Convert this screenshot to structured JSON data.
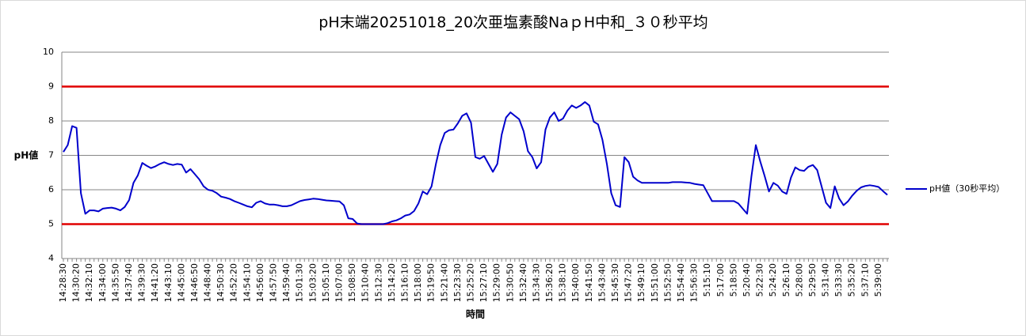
{
  "chart_data": {
    "type": "line",
    "title": "pH末端20251018_20次亜塩素酸NaｐH中和_３０秒平均",
    "y_label": "pH値",
    "x_label": "時間",
    "ylim": [
      4,
      10
    ],
    "yticks": [
      4,
      5,
      6,
      7,
      8,
      9,
      10
    ],
    "grid": true,
    "legend": "right",
    "reference_lines": [
      {
        "value": 5,
        "color": "#e00000"
      },
      {
        "value": 9,
        "color": "#e00000"
      }
    ],
    "categories": [
      "14:28:30",
      null,
      null,
      "14:30:20",
      null,
      null,
      "14:32:10",
      null,
      null,
      "14:34:00",
      null,
      null,
      "14:35:50",
      null,
      null,
      "14:37:40",
      null,
      null,
      "14:39:30",
      null,
      null,
      "14:41:20",
      null,
      null,
      "14:43:10",
      null,
      null,
      "14:45:00",
      null,
      null,
      "14:46:50",
      null,
      null,
      "14:48:40",
      null,
      null,
      "14:50:30",
      null,
      null,
      "14:52:20",
      null,
      null,
      "14:54:10",
      null,
      null,
      "14:56:00",
      null,
      null,
      "14:57:50",
      null,
      null,
      "14:59:40",
      null,
      null,
      "15:01:30",
      null,
      null,
      "15:03:20",
      null,
      null,
      "15:05:10",
      null,
      null,
      "15:07:00",
      null,
      null,
      "15:08:50",
      null,
      null,
      "15:10:40",
      null,
      null,
      "15:12:30",
      null,
      null,
      "15:14:20",
      null,
      null,
      "15:16:10",
      null,
      null,
      "15:18:00",
      null,
      null,
      "15:19:50",
      null,
      null,
      "15:21:40",
      null,
      null,
      "15:23:30",
      null,
      null,
      "15:25:20",
      null,
      null,
      "15:27:10",
      null,
      null,
      "15:29:00",
      null,
      null,
      "15:30:50",
      null,
      null,
      "15:32:40",
      null,
      null,
      "15:34:30",
      null,
      null,
      "15:36:20",
      null,
      null,
      "15:38:10",
      null,
      null,
      "15:40:00",
      null,
      null,
      "15:41:50",
      null,
      null,
      "15:43:40",
      null,
      null,
      "15:45:30",
      null,
      null,
      "15:47:20",
      null,
      null,
      "15:49:10",
      null,
      null,
      "15:51:00",
      null,
      null,
      "15:52:50",
      null,
      null,
      "15:54:40",
      null,
      null,
      "15:56:30",
      null,
      null,
      "5:15:10",
      null,
      null,
      "5:17:00",
      null,
      null,
      "5:18:50",
      null,
      null,
      "5:20:40",
      null,
      null,
      "5:22:30",
      null,
      null,
      "5:24:20",
      null,
      null,
      "5:26:10",
      null,
      null,
      "5:28:00",
      null,
      null,
      "5:29:50",
      null,
      null,
      "5:31:40",
      null,
      null,
      "5:33:30",
      null,
      null,
      "5:35:20",
      null,
      null,
      "5:37:10",
      null,
      null,
      "5:39:00",
      null,
      null
    ],
    "series": [
      {
        "name": "pH値（30秒平均）",
        "color": "#0000cc",
        "values": [
          7.1,
          7.3,
          7.85,
          7.8,
          5.9,
          5.3,
          5.4,
          5.4,
          5.37,
          5.45,
          5.47,
          5.48,
          5.45,
          5.4,
          5.5,
          5.7,
          6.2,
          6.42,
          6.78,
          6.7,
          6.63,
          6.68,
          6.75,
          6.8,
          6.75,
          6.72,
          6.75,
          6.73,
          6.5,
          6.6,
          6.45,
          6.3,
          6.1,
          6.0,
          5.97,
          5.9,
          5.8,
          5.77,
          5.73,
          5.67,
          5.62,
          5.57,
          5.52,
          5.49,
          5.62,
          5.67,
          5.6,
          5.57,
          5.57,
          5.55,
          5.52,
          5.52,
          5.55,
          5.61,
          5.67,
          5.7,
          5.72,
          5.74,
          5.73,
          5.71,
          5.69,
          5.68,
          5.67,
          5.66,
          5.55,
          5.17,
          5.15,
          5.02,
          5.0,
          5.0,
          5.0,
          5.0,
          5.0,
          5.0,
          5.03,
          5.08,
          5.11,
          5.17,
          5.25,
          5.28,
          5.38,
          5.6,
          5.95,
          5.87,
          6.1,
          6.75,
          7.3,
          7.65,
          7.73,
          7.75,
          7.93,
          8.15,
          8.22,
          7.95,
          6.95,
          6.9,
          6.98,
          6.75,
          6.52,
          6.75,
          7.6,
          8.1,
          8.25,
          8.15,
          8.05,
          7.7,
          7.12,
          6.95,
          6.62,
          6.8,
          7.75,
          8.1,
          8.25,
          8.0,
          8.07,
          8.3,
          8.45,
          8.38,
          8.45,
          8.55,
          8.45,
          7.98,
          7.9,
          7.45,
          6.75,
          5.9,
          5.55,
          5.5,
          6.95,
          6.8,
          6.38,
          6.27,
          6.2,
          6.2,
          6.2,
          6.2,
          6.2,
          6.2,
          6.2,
          6.22,
          6.22,
          6.22,
          6.21,
          6.2,
          6.17,
          6.15,
          6.13,
          5.9,
          5.67,
          5.67,
          5.67,
          5.67,
          5.67,
          5.67,
          5.6,
          5.45,
          5.3,
          6.4,
          7.3,
          6.82,
          6.4,
          5.95,
          6.2,
          6.12,
          5.95,
          5.88,
          6.35,
          6.65,
          6.57,
          6.55,
          6.67,
          6.72,
          6.57,
          6.1,
          5.62,
          5.47,
          6.1,
          5.75,
          5.55,
          5.66,
          5.83,
          5.97,
          6.07,
          6.11,
          6.13,
          6.11,
          6.08,
          5.96,
          5.85
        ]
      }
    ]
  }
}
